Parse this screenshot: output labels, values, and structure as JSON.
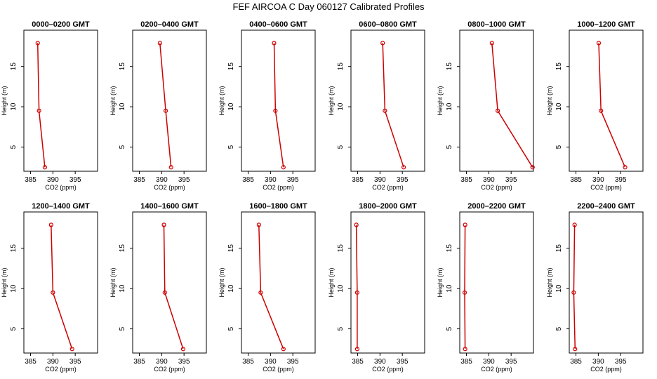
{
  "title": "FEF AIRCOA C  Day 060127  Calibrated Profiles",
  "colors": {
    "profile": "#cc0000",
    "axes": "#000000",
    "background": "#ffffff"
  },
  "chart_data": [
    {
      "type": "line",
      "title": "0000–0200 GMT",
      "xlabel": "CO2 (ppm)",
      "ylabel": "Height (m)",
      "xlim": [
        383.5,
        400
      ],
      "ylim": [
        2,
        19.5
      ],
      "xticks": [
        385,
        390,
        395
      ],
      "yticks": [
        5,
        10,
        15
      ],
      "x": [
        386.6,
        386.9,
        388.2
      ],
      "y": [
        17.9,
        9.5,
        2.5
      ]
    },
    {
      "type": "line",
      "title": "0200–0400 GMT",
      "xlabel": "CO2 (ppm)",
      "ylabel": "Height (m)",
      "xlim": [
        383.5,
        400
      ],
      "ylim": [
        2,
        19.5
      ],
      "xticks": [
        385,
        390,
        395
      ],
      "yticks": [
        5,
        10,
        15
      ],
      "x": [
        389.6,
        390.9,
        392.1
      ],
      "y": [
        17.9,
        9.5,
        2.5
      ]
    },
    {
      "type": "line",
      "title": "0400–0600 GMT",
      "xlabel": "CO2 (ppm)",
      "ylabel": "Height (m)",
      "xlim": [
        383.5,
        400
      ],
      "ylim": [
        2,
        19.5
      ],
      "xticks": [
        385,
        390,
        395
      ],
      "yticks": [
        5,
        10,
        15
      ],
      "x": [
        390.8,
        391.1,
        392.9
      ],
      "y": [
        17.9,
        9.5,
        2.5
      ]
    },
    {
      "type": "line",
      "title": "0600–0800 GMT",
      "xlabel": "CO2 (ppm)",
      "ylabel": "Height (m)",
      "xlim": [
        383.5,
        400
      ],
      "ylim": [
        2,
        19.5
      ],
      "xticks": [
        385,
        390,
        395
      ],
      "yticks": [
        5,
        10,
        15
      ],
      "x": [
        390.6,
        391.1,
        395.3
      ],
      "y": [
        17.9,
        9.5,
        2.5
      ]
    },
    {
      "type": "line",
      "title": "0800–1000 GMT",
      "xlabel": "CO2 (ppm)",
      "ylabel": "Height (m)",
      "xlim": [
        383.5,
        400
      ],
      "ylim": [
        2,
        19.5
      ],
      "xticks": [
        385,
        390,
        395
      ],
      "yticks": [
        5,
        10,
        15
      ],
      "x": [
        390.7,
        392.0,
        399.8
      ],
      "y": [
        17.9,
        9.5,
        2.5
      ]
    },
    {
      "type": "line",
      "title": "1000–1200 GMT",
      "xlabel": "CO2 (ppm)",
      "ylabel": "Height (m)",
      "xlim": [
        383.5,
        400
      ],
      "ylim": [
        2,
        19.5
      ],
      "xticks": [
        385,
        390,
        395
      ],
      "yticks": [
        5,
        10,
        15
      ],
      "x": [
        390.1,
        390.6,
        396.0
      ],
      "y": [
        17.9,
        9.5,
        2.5
      ]
    },
    {
      "type": "line",
      "title": "1200–1400 GMT",
      "xlabel": "CO2 (ppm)",
      "ylabel": "Height (m)",
      "xlim": [
        383.5,
        400
      ],
      "ylim": [
        2,
        19.5
      ],
      "xticks": [
        385,
        390,
        395
      ],
      "yticks": [
        5,
        10,
        15
      ],
      "x": [
        389.6,
        390.0,
        394.3
      ],
      "y": [
        17.9,
        9.5,
        2.5
      ]
    },
    {
      "type": "line",
      "title": "1400–1600 GMT",
      "xlabel": "CO2 (ppm)",
      "ylabel": "Height (m)",
      "xlim": [
        383.5,
        400
      ],
      "ylim": [
        2,
        19.5
      ],
      "xticks": [
        385,
        390,
        395
      ],
      "yticks": [
        5,
        10,
        15
      ],
      "x": [
        390.5,
        390.7,
        394.8
      ],
      "y": [
        17.9,
        9.5,
        2.5
      ]
    },
    {
      "type": "line",
      "title": "1600–1800 GMT",
      "xlabel": "CO2 (ppm)",
      "ylabel": "Height (m)",
      "xlim": [
        383.5,
        400
      ],
      "ylim": [
        2,
        19.5
      ],
      "xticks": [
        385,
        390,
        395
      ],
      "yticks": [
        5,
        10,
        15
      ],
      "x": [
        387.4,
        387.8,
        392.9
      ],
      "y": [
        17.9,
        9.5,
        2.5
      ]
    },
    {
      "type": "line",
      "title": "1800–2000 GMT",
      "xlabel": "CO2 (ppm)",
      "ylabel": "Height (m)",
      "xlim": [
        383.5,
        400
      ],
      "ylim": [
        2,
        19.5
      ],
      "xticks": [
        385,
        390,
        395
      ],
      "yticks": [
        5,
        10,
        15
      ],
      "x": [
        384.7,
        384.9,
        384.9
      ],
      "y": [
        17.9,
        9.5,
        2.5
      ]
    },
    {
      "type": "line",
      "title": "2000–2200 GMT",
      "xlabel": "CO2 (ppm)",
      "ylabel": "Height (m)",
      "xlim": [
        383.5,
        400
      ],
      "ylim": [
        2,
        19.5
      ],
      "xticks": [
        385,
        390,
        395
      ],
      "yticks": [
        5,
        10,
        15
      ],
      "x": [
        384.7,
        384.6,
        384.7
      ],
      "y": [
        17.9,
        9.5,
        2.5
      ]
    },
    {
      "type": "line",
      "title": "2200–2400 GMT",
      "xlabel": "CO2 (ppm)",
      "ylabel": "Height (m)",
      "xlim": [
        383.5,
        400
      ],
      "ylim": [
        2,
        19.5
      ],
      "xticks": [
        385,
        390,
        395
      ],
      "yticks": [
        5,
        10,
        15
      ],
      "x": [
        384.7,
        384.5,
        384.8
      ],
      "y": [
        17.9,
        9.5,
        2.5
      ]
    }
  ]
}
